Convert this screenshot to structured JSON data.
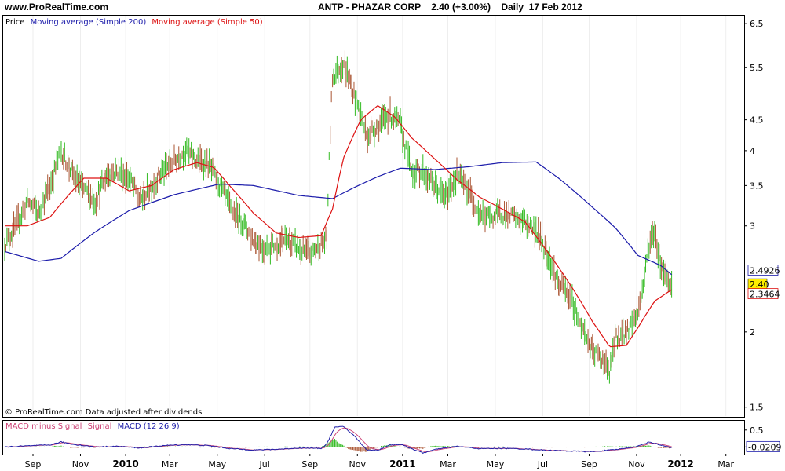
{
  "header": {
    "site": "www.ProRealTime.com",
    "ticker": "ANTP - PHAZAR CORP",
    "price_change": "2.40 (+3.00%)",
    "period": "Daily",
    "date": "17 Feb 2012"
  },
  "legend": {
    "price": "Price",
    "ma200": "Moving average (Simple 200)",
    "ma50": "Moving average (Simple 50)"
  },
  "footnote": "© ProRealTime.com  Data adjusted after dividends",
  "macd_legend": {
    "hist": "MACD minus Signal",
    "signal": "Signal",
    "macd": "MACD (12 26 9)"
  },
  "colors": {
    "up": "#33bb22",
    "down": "#aa5533",
    "ma200": "#1a1aaa",
    "ma50": "#dd1111",
    "macd": "#2222aa",
    "signal": "#cc4477",
    "price_tag": "#ffee00"
  },
  "chart_data": [
    {
      "type": "ohlc",
      "scale": "log",
      "ylim": [
        1.45,
        6.7
      ],
      "yticks": [
        "6.5",
        "5.5",
        "4.5",
        "4",
        "3.5",
        "3",
        "2",
        "1.5"
      ],
      "x_labels": [
        {
          "label": "Sep",
          "idx": 25,
          "bold": false
        },
        {
          "label": "Nov",
          "idx": 67,
          "bold": false
        },
        {
          "label": "2010",
          "idx": 107,
          "bold": true
        },
        {
          "label": "Mar",
          "idx": 146,
          "bold": false
        },
        {
          "label": "May",
          "idx": 188,
          "bold": false
        },
        {
          "label": "Jul",
          "idx": 230,
          "bold": false
        },
        {
          "label": "Sep",
          "idx": 270,
          "bold": false
        },
        {
          "label": "Nov",
          "idx": 312,
          "bold": false
        },
        {
          "label": "2011",
          "idx": 352,
          "bold": true
        },
        {
          "label": "Mar",
          "idx": 392,
          "bold": false
        },
        {
          "label": "May",
          "idx": 434,
          "bold": false
        },
        {
          "label": "Jul",
          "idx": 476,
          "bold": false
        },
        {
          "label": "Sep",
          "idx": 517,
          "bold": false
        },
        {
          "label": "Nov",
          "idx": 559,
          "bold": false
        },
        {
          "label": "2012",
          "idx": 598,
          "bold": true
        },
        {
          "label": "Mar",
          "idx": 638,
          "bold": false
        }
      ],
      "n_bars": 620,
      "price_anchors": [
        [
          0,
          2.8
        ],
        [
          10,
          3.0
        ],
        [
          20,
          3.3
        ],
        [
          30,
          3.15
        ],
        [
          40,
          3.5
        ],
        [
          50,
          4.0
        ],
        [
          60,
          3.65
        ],
        [
          70,
          3.45
        ],
        [
          80,
          3.3
        ],
        [
          90,
          3.65
        ],
        [
          100,
          3.7
        ],
        [
          110,
          3.6
        ],
        [
          120,
          3.3
        ],
        [
          130,
          3.5
        ],
        [
          140,
          3.7
        ],
        [
          150,
          3.85
        ],
        [
          160,
          4.0
        ],
        [
          170,
          3.85
        ],
        [
          180,
          3.8
        ],
        [
          190,
          3.5
        ],
        [
          200,
          3.2
        ],
        [
          210,
          3.05
        ],
        [
          220,
          2.85
        ],
        [
          230,
          2.75
        ],
        [
          240,
          2.8
        ],
        [
          250,
          2.85
        ],
        [
          260,
          2.75
        ],
        [
          270,
          2.7
        ],
        [
          280,
          2.8
        ],
        [
          285,
          2.85
        ],
        [
          290,
          5.3
        ],
        [
          300,
          5.6
        ],
        [
          310,
          4.9
        ],
        [
          320,
          4.25
        ],
        [
          330,
          4.4
        ],
        [
          340,
          4.6
        ],
        [
          350,
          4.4
        ],
        [
          355,
          4.0
        ],
        [
          360,
          3.7
        ],
        [
          370,
          3.7
        ],
        [
          380,
          3.5
        ],
        [
          390,
          3.35
        ],
        [
          400,
          3.65
        ],
        [
          410,
          3.45
        ],
        [
          420,
          3.15
        ],
        [
          430,
          3.1
        ],
        [
          440,
          3.15
        ],
        [
          450,
          3.1
        ],
        [
          460,
          3.05
        ],
        [
          470,
          2.95
        ],
        [
          480,
          2.7
        ],
        [
          490,
          2.4
        ],
        [
          500,
          2.3
        ],
        [
          510,
          2.05
        ],
        [
          520,
          1.85
        ],
        [
          530,
          1.8
        ],
        [
          535,
          1.7
        ],
        [
          540,
          1.95
        ],
        [
          550,
          2.0
        ],
        [
          560,
          2.15
        ],
        [
          565,
          2.4
        ],
        [
          570,
          2.8
        ],
        [
          575,
          2.95
        ],
        [
          580,
          2.6
        ],
        [
          585,
          2.5
        ],
        [
          590,
          2.4
        ]
      ],
      "ma200": [
        [
          0,
          2.72
        ],
        [
          30,
          2.62
        ],
        [
          50,
          2.65
        ],
        [
          80,
          2.93
        ],
        [
          110,
          3.18
        ],
        [
          150,
          3.38
        ],
        [
          190,
          3.52
        ],
        [
          220,
          3.5
        ],
        [
          260,
          3.37
        ],
        [
          290,
          3.33
        ],
        [
          310,
          3.48
        ],
        [
          330,
          3.62
        ],
        [
          350,
          3.74
        ],
        [
          380,
          3.72
        ],
        [
          410,
          3.76
        ],
        [
          440,
          3.82
        ],
        [
          470,
          3.83
        ],
        [
          490,
          3.6
        ],
        [
          520,
          3.22
        ],
        [
          540,
          2.98
        ],
        [
          560,
          2.68
        ],
        [
          580,
          2.58
        ],
        [
          590,
          2.49
        ]
      ],
      "ma50": [
        [
          0,
          3.0
        ],
        [
          20,
          3.0
        ],
        [
          40,
          3.1
        ],
        [
          55,
          3.35
        ],
        [
          70,
          3.6
        ],
        [
          90,
          3.6
        ],
        [
          110,
          3.43
        ],
        [
          130,
          3.5
        ],
        [
          150,
          3.72
        ],
        [
          170,
          3.82
        ],
        [
          185,
          3.75
        ],
        [
          200,
          3.48
        ],
        [
          220,
          3.15
        ],
        [
          240,
          2.92
        ],
        [
          260,
          2.87
        ],
        [
          280,
          2.89
        ],
        [
          290,
          3.2
        ],
        [
          300,
          3.9
        ],
        [
          315,
          4.5
        ],
        [
          330,
          4.75
        ],
        [
          345,
          4.55
        ],
        [
          360,
          4.2
        ],
        [
          380,
          3.88
        ],
        [
          400,
          3.58
        ],
        [
          420,
          3.35
        ],
        [
          440,
          3.2
        ],
        [
          460,
          3.05
        ],
        [
          480,
          2.72
        ],
        [
          500,
          2.4
        ],
        [
          520,
          2.08
        ],
        [
          535,
          1.89
        ],
        [
          550,
          1.9
        ],
        [
          560,
          2.03
        ],
        [
          575,
          2.25
        ],
        [
          590,
          2.35
        ]
      ],
      "price_tags": [
        {
          "label": "2.4926",
          "value": 2.4926,
          "kind": "ma200"
        },
        {
          "label": "2.40",
          "value": 2.4,
          "kind": "price"
        },
        {
          "label": "2.3464",
          "value": 2.3464,
          "kind": "ma50"
        }
      ]
    },
    {
      "type": "macd",
      "ylim": [
        -0.2,
        0.75
      ],
      "yticks": [
        "0.5",
        "0"
      ],
      "last_value_tag": "-0.0209",
      "macd_anchors": [
        [
          0,
          0.0
        ],
        [
          20,
          0.03
        ],
        [
          40,
          0.06
        ],
        [
          50,
          0.15
        ],
        [
          60,
          0.08
        ],
        [
          80,
          0.0
        ],
        [
          100,
          0.02
        ],
        [
          120,
          -0.03
        ],
        [
          140,
          0.04
        ],
        [
          160,
          0.07
        ],
        [
          180,
          0.04
        ],
        [
          200,
          -0.05
        ],
        [
          220,
          -0.09
        ],
        [
          240,
          -0.07
        ],
        [
          260,
          -0.03
        ],
        [
          280,
          -0.04
        ],
        [
          285,
          0.1
        ],
        [
          292,
          0.58
        ],
        [
          300,
          0.6
        ],
        [
          310,
          0.3
        ],
        [
          320,
          -0.08
        ],
        [
          330,
          -0.1
        ],
        [
          340,
          0.06
        ],
        [
          350,
          0.08
        ],
        [
          360,
          -0.05
        ],
        [
          370,
          -0.18
        ],
        [
          380,
          -0.08
        ],
        [
          400,
          0.02
        ],
        [
          420,
          -0.05
        ],
        [
          440,
          -0.04
        ],
        [
          460,
          -0.06
        ],
        [
          480,
          -0.1
        ],
        [
          500,
          -0.12
        ],
        [
          520,
          -0.14
        ],
        [
          540,
          -0.08
        ],
        [
          560,
          0.02
        ],
        [
          570,
          0.15
        ],
        [
          580,
          0.06
        ],
        [
          590,
          -0.02
        ]
      ]
    }
  ]
}
